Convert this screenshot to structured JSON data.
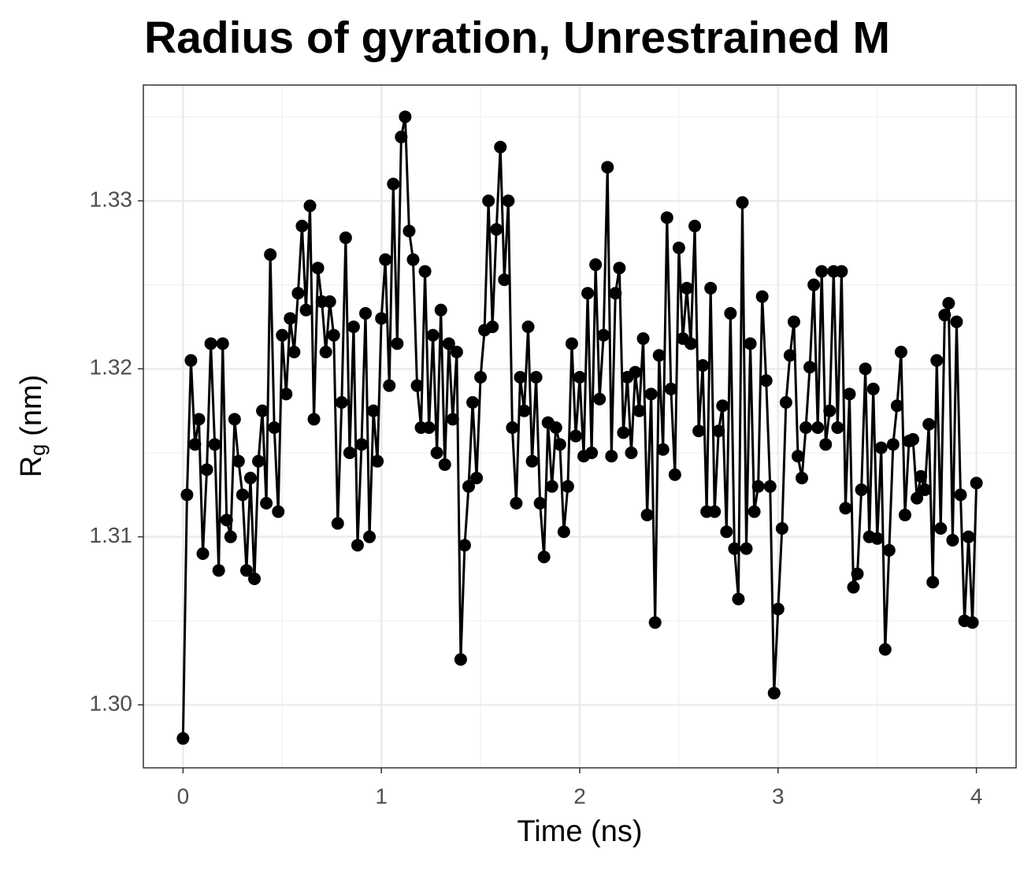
{
  "chart_data": {
    "type": "line",
    "title": "Radius of gyration, Unrestrained M",
    "x_label": "Time (ns)",
    "y_label": [
      "R",
      "g",
      "(nm)"
    ],
    "color": "#000000",
    "grid": true,
    "xlim": [
      -0.2,
      4.2
    ],
    "ylim": [
      1.29625,
      1.33689
    ],
    "xticks": [
      0,
      1,
      2,
      3,
      4
    ],
    "yticks": [
      {
        "value": 1.3,
        "label": "1.30"
      },
      {
        "value": 1.31,
        "label": "1.31"
      },
      {
        "value": 1.32,
        "label": "1.32"
      },
      {
        "value": 1.33,
        "label": "1.33"
      }
    ],
    "x_minor_grid": [
      0.5,
      1.5,
      2.5,
      3.5
    ],
    "y_minor_grid": [
      1.305,
      1.315,
      1.325,
      1.335
    ],
    "x": [
      0,
      0.02,
      0.04,
      0.06,
      0.08,
      0.1,
      0.12,
      0.14,
      0.16,
      0.18,
      0.2,
      0.22,
      0.24,
      0.26,
      0.28,
      0.3,
      0.32,
      0.34,
      0.36,
      0.38,
      0.4,
      0.42,
      0.44,
      0.46,
      0.48,
      0.5,
      0.52,
      0.54,
      0.56,
      0.58,
      0.6,
      0.62,
      0.64,
      0.66,
      0.68,
      0.7,
      0.72,
      0.74,
      0.76,
      0.78,
      0.8,
      0.82,
      0.84,
      0.86,
      0.88,
      0.9,
      0.92,
      0.94,
      0.96,
      0.98,
      1,
      1.02,
      1.04,
      1.06,
      1.08,
      1.1,
      1.12,
      1.14,
      1.16,
      1.18,
      1.2,
      1.22,
      1.24,
      1.26,
      1.28,
      1.3,
      1.32,
      1.34,
      1.36,
      1.38,
      1.4,
      1.42,
      1.44,
      1.46,
      1.48,
      1.5,
      1.52,
      1.54,
      1.56,
      1.58,
      1.6,
      1.62,
      1.64,
      1.66,
      1.68,
      1.7,
      1.72,
      1.74,
      1.76,
      1.78,
      1.8,
      1.82,
      1.84,
      1.86,
      1.88,
      1.9,
      1.92,
      1.94,
      1.96,
      1.98,
      2,
      2.02,
      2.04,
      2.06,
      2.08,
      2.1,
      2.12,
      2.14,
      2.16,
      2.18,
      2.2,
      2.22,
      2.24,
      2.26,
      2.28,
      2.3,
      2.32,
      2.34,
      2.36,
      2.38,
      2.4,
      2.42,
      2.44,
      2.46,
      2.48,
      2.5,
      2.52,
      2.54,
      2.56,
      2.58,
      2.6,
      2.62,
      2.64,
      2.66,
      2.68,
      2.7,
      2.72,
      2.74,
      2.76,
      2.78,
      2.8,
      2.82,
      2.84,
      2.86,
      2.88,
      2.9,
      2.92,
      2.94,
      2.96,
      2.98,
      3,
      3.02,
      3.04,
      3.06,
      3.08,
      3.1,
      3.12,
      3.14,
      3.16,
      3.18,
      3.2,
      3.22,
      3.24,
      3.26,
      3.28,
      3.3,
      3.32,
      3.34,
      3.36,
      3.38,
      3.4,
      3.42,
      3.44,
      3.46,
      3.48,
      3.5,
      3.52,
      3.54,
      3.56,
      3.58,
      3.6,
      3.62,
      3.64,
      3.66,
      3.68,
      3.7,
      3.72,
      3.74,
      3.76,
      3.78,
      3.8,
      3.82,
      3.84,
      3.86,
      3.88,
      3.9,
      3.92,
      3.94,
      3.96,
      3.98,
      4
    ],
    "values": [
      1.298,
      1.3125,
      1.3205,
      1.3155,
      1.317,
      1.309,
      1.314,
      1.3215,
      1.3155,
      1.308,
      1.3215,
      1.311,
      1.31,
      1.317,
      1.3145,
      1.3125,
      1.308,
      1.3135,
      1.3075,
      1.3145,
      1.3175,
      1.312,
      1.3268,
      1.3165,
      1.3115,
      1.322,
      1.3185,
      1.323,
      1.321,
      1.3245,
      1.3285,
      1.3235,
      1.3297,
      1.317,
      1.326,
      1.324,
      1.321,
      1.324,
      1.322,
      1.3108,
      1.318,
      1.3278,
      1.315,
      1.3225,
      1.3095,
      1.3155,
      1.3233,
      1.31,
      1.3175,
      1.3145,
      1.323,
      1.3265,
      1.319,
      1.331,
      1.3215,
      1.3338,
      1.335,
      1.3282,
      1.3265,
      1.319,
      1.3165,
      1.3258,
      1.3165,
      1.322,
      1.315,
      1.3235,
      1.3143,
      1.3215,
      1.317,
      1.321,
      1.3027,
      1.3095,
      1.313,
      1.318,
      1.3135,
      1.3195,
      1.3223,
      1.33,
      1.3225,
      1.3283,
      1.3332,
      1.3253,
      1.33,
      1.3165,
      1.312,
      1.3195,
      1.3175,
      1.3225,
      1.3145,
      1.3195,
      1.312,
      1.3088,
      1.3168,
      1.313,
      1.3165,
      1.3155,
      1.3103,
      1.313,
      1.3215,
      1.316,
      1.3195,
      1.3148,
      1.3245,
      1.315,
      1.3262,
      1.3182,
      1.322,
      1.332,
      1.3148,
      1.3245,
      1.326,
      1.3162,
      1.3195,
      1.315,
      1.3198,
      1.3175,
      1.3218,
      1.3113,
      1.3185,
      1.3049,
      1.3208,
      1.3152,
      1.329,
      1.3188,
      1.3137,
      1.3272,
      1.3218,
      1.3248,
      1.3215,
      1.3285,
      1.3163,
      1.3202,
      1.3115,
      1.3248,
      1.3115,
      1.3163,
      1.3178,
      1.3103,
      1.3233,
      1.3093,
      1.3063,
      1.3299,
      1.3093,
      1.3215,
      1.3115,
      1.313,
      1.3243,
      1.3193,
      1.313,
      1.3007,
      1.3057,
      1.3105,
      1.318,
      1.3208,
      1.3228,
      1.3148,
      1.3135,
      1.3165,
      1.3201,
      1.325,
      1.3165,
      1.3258,
      1.3155,
      1.3175,
      1.3258,
      1.3165,
      1.3258,
      1.3117,
      1.3185,
      1.307,
      1.3078,
      1.3128,
      1.32,
      1.31,
      1.3188,
      1.3099,
      1.3153,
      1.3033,
      1.3092,
      1.3155,
      1.3178,
      1.321,
      1.3113,
      1.3157,
      1.3158,
      1.3123,
      1.3136,
      1.3128,
      1.3167,
      1.3073,
      1.3205,
      1.3105,
      1.3232,
      1.3239,
      1.3098,
      1.3228,
      1.3125,
      1.305,
      1.31,
      1.3049,
      1.3132
    ]
  }
}
